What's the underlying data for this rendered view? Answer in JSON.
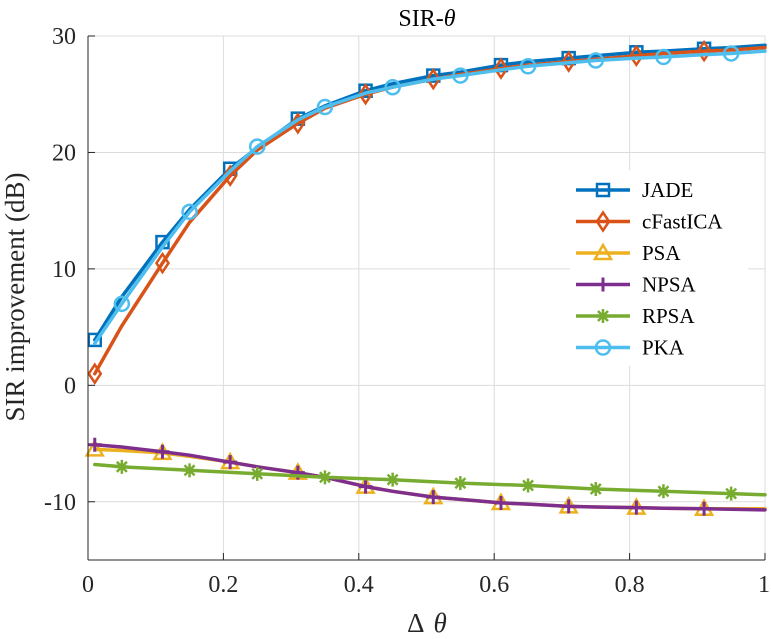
{
  "chart_data": {
    "type": "line",
    "title": "SIR-θ",
    "title_prefix": "SIR-",
    "title_symbol": "θ",
    "xlabel": "Δ θ",
    "xlabel_prefix": "Δ",
    "xlabel_symbol": "θ",
    "ylabel": "SIR improvement (dB)",
    "xlim": [
      0,
      1
    ],
    "ylim": [
      -15,
      30
    ],
    "xticks": [
      0,
      0.2,
      0.4,
      0.6,
      0.8,
      1
    ],
    "xtick_labels": [
      "0",
      "0.2",
      "0.4",
      "0.6",
      "0.8",
      "1"
    ],
    "yticks": [
      -10,
      0,
      10,
      20,
      30
    ],
    "ytick_labels": [
      "-10",
      "0",
      "10",
      "20",
      "30"
    ],
    "grid": true,
    "legend_position": "center-right",
    "series": [
      {
        "name": "JADE",
        "color": "#0072BD",
        "marker": "square",
        "x": [
          0.01,
          0.05,
          0.11,
          0.15,
          0.21,
          0.25,
          0.31,
          0.35,
          0.41,
          0.45,
          0.51,
          0.55,
          0.61,
          0.65,
          0.71,
          0.75,
          0.81,
          0.85,
          0.91,
          0.95,
          1.0
        ],
        "y": [
          3.9,
          7.6,
          12.3,
          15.1,
          18.6,
          20.4,
          22.9,
          24.0,
          25.3,
          25.9,
          26.6,
          26.9,
          27.5,
          27.8,
          28.1,
          28.3,
          28.6,
          28.7,
          28.9,
          29.0,
          29.2
        ],
        "marker_x": [
          0.01,
          0.11,
          0.21,
          0.31,
          0.41,
          0.51,
          0.61,
          0.71,
          0.81,
          0.91
        ]
      },
      {
        "name": "cFastICA",
        "color": "#D95319",
        "marker": "diamond",
        "x": [
          0.01,
          0.05,
          0.11,
          0.15,
          0.21,
          0.25,
          0.31,
          0.35,
          0.41,
          0.45,
          0.51,
          0.55,
          0.61,
          0.65,
          0.71,
          0.75,
          0.81,
          0.85,
          0.91,
          0.95,
          1.0
        ],
        "y": [
          1.0,
          5.1,
          10.5,
          14.0,
          18.0,
          20.2,
          22.5,
          23.8,
          25.0,
          25.6,
          26.3,
          26.7,
          27.2,
          27.5,
          27.8,
          28.0,
          28.3,
          28.5,
          28.7,
          28.8,
          29.0
        ],
        "marker_x": [
          0.01,
          0.11,
          0.21,
          0.31,
          0.41,
          0.51,
          0.61,
          0.71,
          0.81,
          0.91
        ]
      },
      {
        "name": "PSA",
        "color": "#EDB120",
        "marker": "triangle",
        "x": [
          0.01,
          0.05,
          0.11,
          0.15,
          0.21,
          0.25,
          0.31,
          0.35,
          0.41,
          0.45,
          0.51,
          0.55,
          0.61,
          0.65,
          0.71,
          0.75,
          0.81,
          0.85,
          0.91,
          0.95,
          1.0
        ],
        "y": [
          -5.5,
          -5.6,
          -5.8,
          -6.1,
          -6.6,
          -7.0,
          -7.5,
          -7.9,
          -8.7,
          -9.1,
          -9.6,
          -9.8,
          -10.1,
          -10.2,
          -10.4,
          -10.45,
          -10.5,
          -10.55,
          -10.6,
          -10.6,
          -10.6
        ],
        "marker_x": [
          0.01,
          0.11,
          0.21,
          0.31,
          0.41,
          0.51,
          0.61,
          0.71,
          0.81,
          0.91
        ]
      },
      {
        "name": "NPSA",
        "color": "#7E2F8E",
        "marker": "plus",
        "x": [
          0.01,
          0.05,
          0.11,
          0.15,
          0.21,
          0.25,
          0.31,
          0.35,
          0.41,
          0.45,
          0.51,
          0.55,
          0.61,
          0.65,
          0.71,
          0.75,
          0.81,
          0.85,
          0.91,
          0.95,
          1.0
        ],
        "y": [
          -5.1,
          -5.3,
          -5.7,
          -6.0,
          -6.6,
          -7.0,
          -7.5,
          -7.9,
          -8.7,
          -9.1,
          -9.6,
          -9.8,
          -10.1,
          -10.2,
          -10.4,
          -10.45,
          -10.5,
          -10.55,
          -10.6,
          -10.65,
          -10.7
        ],
        "marker_x": [
          0.01,
          0.11,
          0.21,
          0.31,
          0.41,
          0.51,
          0.61,
          0.71,
          0.81,
          0.91
        ]
      },
      {
        "name": "RPSA",
        "color": "#77AC30",
        "marker": "asterisk",
        "x": [
          0.01,
          0.05,
          0.15,
          0.25,
          0.35,
          0.45,
          0.55,
          0.65,
          0.75,
          0.85,
          0.95,
          1.0
        ],
        "y": [
          -6.8,
          -7.0,
          -7.3,
          -7.6,
          -7.9,
          -8.1,
          -8.4,
          -8.6,
          -8.9,
          -9.1,
          -9.3,
          -9.4
        ],
        "marker_x": [
          0.05,
          0.15,
          0.25,
          0.35,
          0.45,
          0.55,
          0.65,
          0.75,
          0.85,
          0.95
        ]
      },
      {
        "name": "PKA",
        "color": "#4DBEEE",
        "marker": "circle",
        "x": [
          0.01,
          0.05,
          0.11,
          0.15,
          0.21,
          0.25,
          0.31,
          0.35,
          0.41,
          0.45,
          0.51,
          0.55,
          0.61,
          0.65,
          0.71,
          0.75,
          0.81,
          0.85,
          0.91,
          0.95,
          1.0
        ],
        "y": [
          3.6,
          7.0,
          11.9,
          14.9,
          18.4,
          20.5,
          22.8,
          23.9,
          25.1,
          25.6,
          26.3,
          26.6,
          27.1,
          27.4,
          27.7,
          27.9,
          28.1,
          28.2,
          28.4,
          28.5,
          28.7
        ],
        "marker_x": [
          0.05,
          0.15,
          0.25,
          0.35,
          0.45,
          0.55,
          0.65,
          0.75,
          0.85,
          0.95
        ]
      }
    ]
  }
}
